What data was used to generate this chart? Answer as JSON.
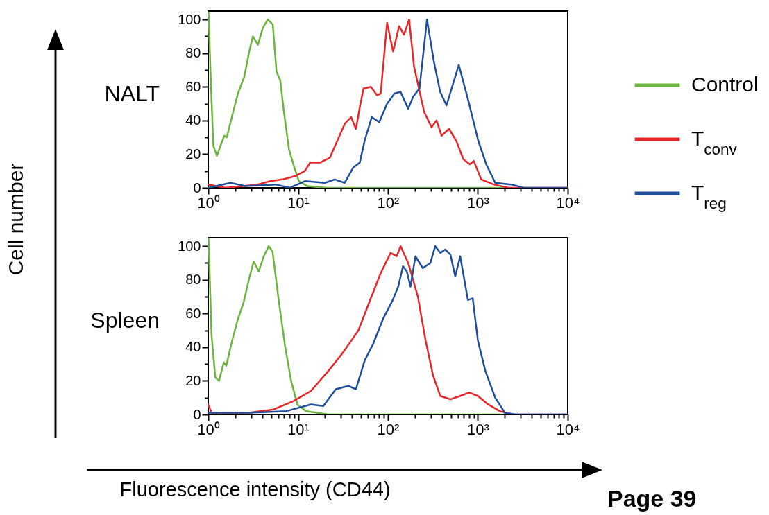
{
  "chart_data": [
    {
      "type": "line",
      "title": "NALT",
      "ylabel": "Cell number",
      "log": "x",
      "legend": "right",
      "xlim": [
        1,
        10000
      ],
      "xticks": [
        {
          "value": 1,
          "label": "10⁰"
        },
        {
          "value": 2,
          "label": null
        },
        {
          "value": 3,
          "label": null
        },
        {
          "value": 4,
          "label": null
        },
        {
          "value": 5,
          "label": null
        },
        {
          "value": 6,
          "label": null
        },
        {
          "value": 7,
          "label": null
        },
        {
          "value": 8,
          "label": null
        },
        {
          "value": 9,
          "label": null
        },
        {
          "value": 10,
          "label": "10¹"
        },
        {
          "value": 20,
          "label": null
        },
        {
          "value": 30,
          "label": null
        },
        {
          "value": 40,
          "label": null
        },
        {
          "value": 50,
          "label": null
        },
        {
          "value": 60,
          "label": null
        },
        {
          "value": 70,
          "label": null
        },
        {
          "value": 80,
          "label": null
        },
        {
          "value": 90,
          "label": null
        },
        {
          "value": 100,
          "label": "10²"
        },
        {
          "value": 200,
          "label": null
        },
        {
          "value": 300,
          "label": null
        },
        {
          "value": 400,
          "label": null
        },
        {
          "value": 500,
          "label": null
        },
        {
          "value": 600,
          "label": null
        },
        {
          "value": 700,
          "label": null
        },
        {
          "value": 800,
          "label": null
        },
        {
          "value": 900,
          "label": null
        },
        {
          "value": 1000,
          "label": "10³"
        },
        {
          "value": 2000,
          "label": null
        },
        {
          "value": 3000,
          "label": null
        },
        {
          "value": 4000,
          "label": null
        },
        {
          "value": 5000,
          "label": null
        },
        {
          "value": 6000,
          "label": null
        },
        {
          "value": 7000,
          "label": null
        },
        {
          "value": 8000,
          "label": null
        },
        {
          "value": 9000,
          "label": null
        },
        {
          "value": 10000,
          "label": "10⁴"
        }
      ],
      "ylim": [
        0,
        105
      ],
      "yticks": [
        0,
        {
          "value": 10,
          "label": null
        },
        20,
        {
          "value": 30,
          "label": null
        },
        40,
        {
          "value": 50,
          "label": null
        },
        60,
        {
          "value": 70,
          "label": null
        },
        80,
        {
          "value": 90,
          "label": null
        },
        100
      ],
      "series": [
        {
          "name": "Control",
          "color": "#6cb33f",
          "x": [
            1.01,
            1.07,
            1.14,
            1.25,
            1.37,
            1.51,
            1.61,
            1.83,
            2.14,
            2.52,
            2.86,
            3.14,
            3.57,
            4.05,
            4.6,
            5.23,
            5.75,
            6.32,
            6.96,
            7.91,
            8.97,
            10.2,
            12.7,
            21,
            2000
          ],
          "values": [
            104,
            63,
            25,
            19,
            25,
            31,
            30,
            42,
            56,
            66,
            81,
            90,
            85,
            95,
            100,
            97,
            69,
            64,
            45,
            23,
            13,
            4,
            1,
            0,
            0
          ]
        },
        {
          "name": "T$_{conv}$",
          "color": "#e8262a",
          "x": [
            1,
            1.56,
            3.57,
            4.9,
            6.7,
            9.3,
            11.9,
            13.6,
            17.5,
            22.6,
            27.3,
            33,
            38.9,
            44,
            48.6,
            53.4,
            64.5,
            75.5,
            83,
            97.7,
            114,
            133,
            151,
            172,
            195,
            253,
            305,
            347,
            394,
            478,
            574,
            690,
            815,
            900,
            1090,
            1500,
            2200,
            10000
          ],
          "values": [
            2,
            0,
            2,
            4,
            5,
            7,
            10,
            15,
            15,
            18,
            28,
            38,
            42,
            35,
            48,
            59,
            60,
            55,
            56,
            98,
            81,
            96,
            91,
            100,
            72,
            45,
            36,
            40,
            31,
            35,
            28,
            17,
            14,
            16,
            5,
            2,
            0,
            0
          ]
        },
        {
          "name": "T$_{reg}$",
          "color": "#1f4e9c",
          "x": [
            1,
            1.77,
            2.6,
            5.6,
            8.1,
            11.9,
            19.9,
            25.6,
            33,
            41,
            48.6,
            55,
            66,
            80,
            97.7,
            118,
            138,
            168,
            190,
            224,
            272,
            324,
            381,
            448,
            614,
            790,
            1010,
            1240,
            1560,
            2350,
            3240,
            10000
          ],
          "values": [
            0,
            3,
            1,
            2,
            0,
            4,
            3,
            5,
            3,
            12,
            15,
            28,
            42,
            39,
            50,
            56,
            57,
            47,
            54,
            59,
            100,
            75,
            57,
            49,
            73,
            51,
            28,
            14,
            3,
            2,
            0,
            0
          ]
        }
      ]
    },
    {
      "type": "line",
      "title": "Spleen",
      "xlabel": "Fluorescence intensity (CD44)",
      "log": "x",
      "annotations": [
        "Page 39"
      ],
      "xlim": [
        1,
        10000
      ],
      "xticks": [
        {
          "value": 1,
          "label": "10⁰"
        },
        {
          "value": 2,
          "label": null
        },
        {
          "value": 3,
          "label": null
        },
        {
          "value": 4,
          "label": null
        },
        {
          "value": 5,
          "label": null
        },
        {
          "value": 6,
          "label": null
        },
        {
          "value": 7,
          "label": null
        },
        {
          "value": 8,
          "label": null
        },
        {
          "value": 9,
          "label": null
        },
        {
          "value": 10,
          "label": "10¹"
        },
        {
          "value": 20,
          "label": null
        },
        {
          "value": 30,
          "label": null
        },
        {
          "value": 40,
          "label": null
        },
        {
          "value": 50,
          "label": null
        },
        {
          "value": 60,
          "label": null
        },
        {
          "value": 70,
          "label": null
        },
        {
          "value": 80,
          "label": null
        },
        {
          "value": 90,
          "label": null
        },
        {
          "value": 100,
          "label": "10²"
        },
        {
          "value": 200,
          "label": null
        },
        {
          "value": 300,
          "label": null
        },
        {
          "value": 400,
          "label": null
        },
        {
          "value": 500,
          "label": null
        },
        {
          "value": 600,
          "label": null
        },
        {
          "value": 700,
          "label": null
        },
        {
          "value": 800,
          "label": null
        },
        {
          "value": 900,
          "label": null
        },
        {
          "value": 1000,
          "label": "10³"
        },
        {
          "value": 2000,
          "label": null
        },
        {
          "value": 3000,
          "label": null
        },
        {
          "value": 4000,
          "label": null
        },
        {
          "value": 5000,
          "label": null
        },
        {
          "value": 6000,
          "label": null
        },
        {
          "value": 7000,
          "label": null
        },
        {
          "value": 8000,
          "label": null
        },
        {
          "value": 9000,
          "label": null
        },
        {
          "value": 10000,
          "label": "10⁴"
        }
      ],
      "ylim": [
        0,
        105
      ],
      "yticks": [
        0,
        {
          "value": 10,
          "label": null
        },
        20,
        {
          "value": 30,
          "label": null
        },
        40,
        {
          "value": 50,
          "label": null
        },
        60,
        {
          "value": 70,
          "label": null
        },
        80,
        {
          "value": 90,
          "label": null
        },
        100
      ],
      "series": [
        {
          "color": "#6cb33f",
          "x": [
            1.01,
            1.09,
            1.2,
            1.32,
            1.49,
            1.59,
            1.81,
            2.12,
            2.49,
            2.83,
            3.21,
            3.65,
            4.15,
            4.71,
            5.19,
            6.08,
            7.14,
            8.36,
            9.8,
            12.3,
            21.8,
            2000
          ],
          "values": [
            104,
            47,
            22,
            20,
            31,
            29,
            42,
            56,
            67,
            80,
            91,
            85,
            94,
            100,
            97,
            68,
            41,
            20,
            6,
            2,
            0,
            0
          ]
        },
        {
          "color": "#e8262a",
          "x": [
            1,
            1.09,
            2.83,
            5.35,
            8.9,
            13.9,
            21.8,
            31.8,
            46.9,
            64.3,
            83,
            107,
            125,
            138,
            168,
            215,
            262,
            318,
            382,
            495,
            636,
            800,
            1000,
            1300,
            1750,
            2430,
            10000
          ],
          "values": [
            6,
            1,
            1,
            3,
            8,
            14,
            26,
            37,
            50,
            69,
            84,
            96,
            94,
            100,
            90,
            70,
            44,
            23,
            11,
            9,
            11,
            13,
            11,
            6,
            2,
            0,
            0
          ]
        },
        {
          "color": "#1f4e9c",
          "x": [
            1,
            2.83,
            7.4,
            13.9,
            19.1,
            26.3,
            36.3,
            44,
            55,
            68.5,
            88.5,
            113,
            130,
            147,
            162,
            178,
            202,
            244,
            296,
            336,
            382,
            434,
            495,
            560,
            636,
            775,
            877,
            1000,
            1210,
            1560,
            2000,
            2600,
            10000
          ],
          "values": [
            1,
            1,
            2,
            6,
            5,
            15,
            17,
            15,
            32,
            42,
            57,
            68,
            76,
            88,
            85,
            76,
            94,
            87,
            90,
            100,
            96,
            98,
            95,
            82,
            94,
            68,
            69,
            44,
            26,
            10,
            1,
            0,
            0
          ]
        }
      ]
    }
  ]
}
